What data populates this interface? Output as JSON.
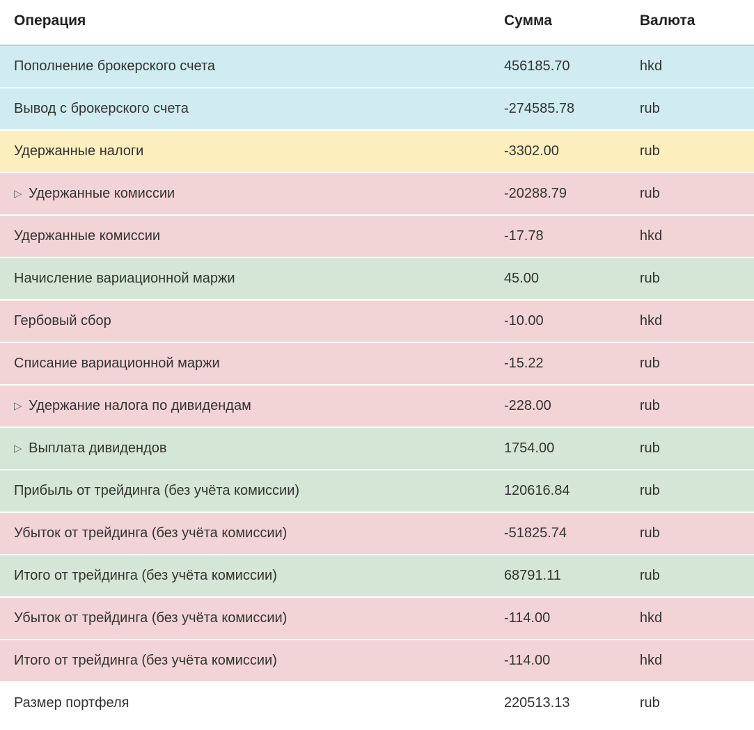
{
  "table": {
    "type": "table",
    "columns": [
      {
        "key": "operation",
        "label": "Операция",
        "width": "65%",
        "align": "left"
      },
      {
        "key": "amount",
        "label": "Сумма",
        "width": "18%",
        "align": "left"
      },
      {
        "key": "currency",
        "label": "Валюта",
        "width": "17%",
        "align": "left"
      }
    ],
    "row_colors": {
      "blue": "#d0ecf0",
      "yellow": "#fdeebd",
      "pink": "#f2d4d7",
      "green": "#d5e6d6",
      "white": "#ffffff"
    },
    "border_color": "#ffffff",
    "header_border_color": "#cccccc",
    "text_color": "#333333",
    "header_text_color": "#222222",
    "font_size": 20,
    "header_font_size": 21,
    "triangle_glyph": "▷",
    "rows": [
      {
        "operation": "Пополнение брокерского счета",
        "amount": "456185.70",
        "currency": "hkd",
        "color": "blue",
        "expandable": false
      },
      {
        "operation": "Вывод с брокерского счета",
        "amount": "-274585.78",
        "currency": "rub",
        "color": "blue",
        "expandable": false
      },
      {
        "operation": "Удержанные налоги",
        "amount": "-3302.00",
        "currency": "rub",
        "color": "yellow",
        "expandable": false
      },
      {
        "operation": "Удержанные комиссии",
        "amount": "-20288.79",
        "currency": "rub",
        "color": "pink",
        "expandable": true
      },
      {
        "operation": "Удержанные комиссии",
        "amount": "-17.78",
        "currency": "hkd",
        "color": "pink",
        "expandable": false
      },
      {
        "operation": "Начисление вариационной маржи",
        "amount": "45.00",
        "currency": "rub",
        "color": "green",
        "expandable": false
      },
      {
        "operation": "Гербовый сбор",
        "amount": "-10.00",
        "currency": "hkd",
        "color": "pink",
        "expandable": false
      },
      {
        "operation": "Списание вариационной маржи",
        "amount": "-15.22",
        "currency": "rub",
        "color": "pink",
        "expandable": false
      },
      {
        "operation": "Удержание налога по дивидендам",
        "amount": "-228.00",
        "currency": "rub",
        "color": "pink",
        "expandable": true
      },
      {
        "operation": "Выплата дивидендов",
        "amount": "1754.00",
        "currency": "rub",
        "color": "green",
        "expandable": true
      },
      {
        "operation": "Прибыль от трейдинга (без учёта комиссии)",
        "amount": "120616.84",
        "currency": "rub",
        "color": "green",
        "expandable": false
      },
      {
        "operation": "Убыток от трейдинга (без учёта комиссии)",
        "amount": "-51825.74",
        "currency": "rub",
        "color": "pink",
        "expandable": false
      },
      {
        "operation": "Итого от трейдинга (без учёта комиссии)",
        "amount": "68791.11",
        "currency": "rub",
        "color": "green",
        "expandable": false
      },
      {
        "operation": "Убыток от трейдинга (без учёта комиссии)",
        "amount": "-114.00",
        "currency": "hkd",
        "color": "pink",
        "expandable": false
      },
      {
        "operation": "Итого от трейдинга (без учёта комиссии)",
        "amount": "-114.00",
        "currency": "hkd",
        "color": "pink",
        "expandable": false
      },
      {
        "operation": "Размер портфеля",
        "amount": "220513.13",
        "currency": "rub",
        "color": "white",
        "expandable": false
      }
    ]
  }
}
